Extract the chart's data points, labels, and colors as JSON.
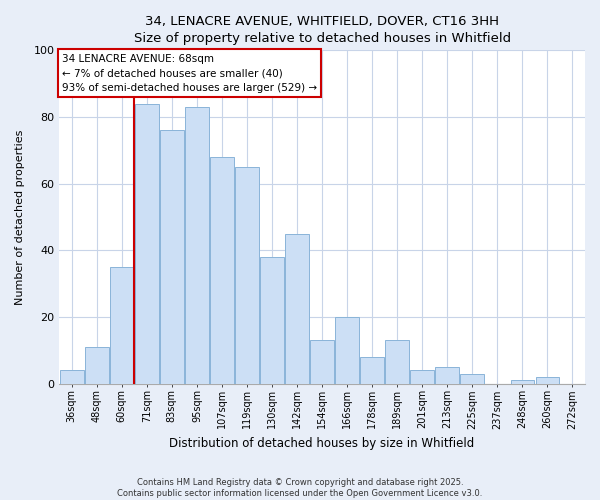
{
  "title": "34, LENACRE AVENUE, WHITFIELD, DOVER, CT16 3HH",
  "subtitle": "Size of property relative to detached houses in Whitfield",
  "xlabel": "Distribution of detached houses by size in Whitfield",
  "ylabel": "Number of detached properties",
  "bar_labels": [
    "36sqm",
    "48sqm",
    "60sqm",
    "71sqm",
    "83sqm",
    "95sqm",
    "107sqm",
    "119sqm",
    "130sqm",
    "142sqm",
    "154sqm",
    "166sqm",
    "178sqm",
    "189sqm",
    "201sqm",
    "213sqm",
    "225sqm",
    "237sqm",
    "248sqm",
    "260sqm",
    "272sqm"
  ],
  "bar_values": [
    4,
    11,
    35,
    84,
    76,
    83,
    68,
    65,
    38,
    45,
    13,
    20,
    8,
    13,
    4,
    5,
    3,
    0,
    1,
    2,
    0
  ],
  "bar_color": "#ccdff5",
  "bar_edge_color": "#8ab4d8",
  "vline_color": "#cc0000",
  "vline_index": 2.5,
  "annotation_text": "34 LENACRE AVENUE: 68sqm\n← 7% of detached houses are smaller (40)\n93% of semi-detached houses are larger (529) →",
  "annotation_box_color": "#ffffff",
  "annotation_box_edge": "#cc0000",
  "ylim": [
    0,
    100
  ],
  "yticks": [
    0,
    20,
    40,
    60,
    80,
    100
  ],
  "footer1": "Contains HM Land Registry data © Crown copyright and database right 2025.",
  "footer2": "Contains public sector information licensed under the Open Government Licence v3.0.",
  "fig_bg_color": "#e8eef8",
  "plot_bg_color": "#ffffff",
  "grid_color": "#c8d4e8"
}
